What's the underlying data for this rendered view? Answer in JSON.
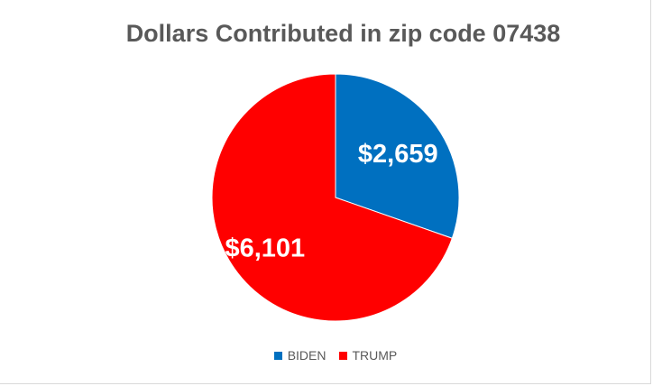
{
  "chart_data": {
    "type": "pie",
    "title": "Dollars Contributed in zip code 07438",
    "categories": [
      "BIDEN",
      "TRUMP"
    ],
    "values": [
      2659,
      6101
    ],
    "labels": [
      "$2,659",
      "$6,101"
    ],
    "colors": [
      "#0070C0",
      "#FF0000"
    ],
    "legend_position": "bottom"
  }
}
